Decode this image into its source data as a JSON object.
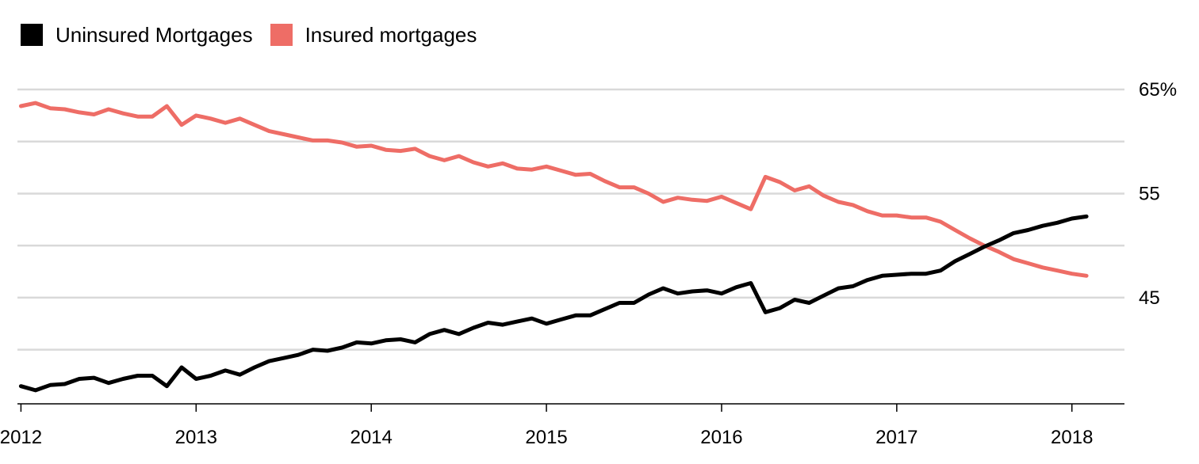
{
  "chart_data": {
    "type": "line",
    "title": "",
    "xlabel": "",
    "ylabel": "",
    "xlim": [
      2011.98,
      2018.3
    ],
    "ylim": [
      34.8,
      65
    ],
    "x_ticks": [
      2012,
      2013,
      2014,
      2015,
      2016,
      2017,
      2018
    ],
    "x_tick_labels": [
      "2012",
      "2013",
      "2014",
      "2015",
      "2016",
      "2017",
      "2018"
    ],
    "y_gridlines": [
      40,
      45,
      50,
      55,
      60,
      65
    ],
    "y_ticks": [
      45,
      55,
      65
    ],
    "y_tick_labels": [
      "45",
      "55",
      "65%"
    ],
    "legend_position": "top-left",
    "grid": true,
    "series": [
      {
        "name": "Uninsured Mortgages",
        "color": "#000000",
        "x": [
          2012.0,
          2012.083,
          2012.167,
          2012.25,
          2012.333,
          2012.417,
          2012.5,
          2012.583,
          2012.667,
          2012.75,
          2012.833,
          2012.917,
          2013.0,
          2013.083,
          2013.167,
          2013.25,
          2013.333,
          2013.417,
          2013.5,
          2013.583,
          2013.667,
          2013.75,
          2013.833,
          2013.917,
          2014.0,
          2014.083,
          2014.167,
          2014.25,
          2014.333,
          2014.417,
          2014.5,
          2014.583,
          2014.667,
          2014.75,
          2014.833,
          2014.917,
          2015.0,
          2015.083,
          2015.167,
          2015.25,
          2015.333,
          2015.417,
          2015.5,
          2015.583,
          2015.667,
          2015.75,
          2015.833,
          2015.917,
          2016.0,
          2016.083,
          2016.167,
          2016.25,
          2016.333,
          2016.417,
          2016.5,
          2016.583,
          2016.667,
          2016.75,
          2016.833,
          2016.917,
          2017.0,
          2017.083,
          2017.167,
          2017.25,
          2017.333,
          2017.417,
          2017.5,
          2017.583,
          2017.667,
          2017.75,
          2017.833,
          2017.917,
          2018.0,
          2018.083
        ],
        "values": [
          36.5,
          36.1,
          36.6,
          36.7,
          37.2,
          37.3,
          36.8,
          37.2,
          37.5,
          37.5,
          36.5,
          38.3,
          37.2,
          37.5,
          38.0,
          37.6,
          38.3,
          38.9,
          39.2,
          39.5,
          40.0,
          39.9,
          40.2,
          40.7,
          40.6,
          40.9,
          41.0,
          40.7,
          41.5,
          41.9,
          41.5,
          42.1,
          42.6,
          42.4,
          42.7,
          43.0,
          42.5,
          42.9,
          43.3,
          43.3,
          43.9,
          44.5,
          44.5,
          45.3,
          45.9,
          45.4,
          45.6,
          45.7,
          45.4,
          46.0,
          46.4,
          43.6,
          44.0,
          44.8,
          44.5,
          45.2,
          45.9,
          46.1,
          46.7,
          47.1,
          47.2,
          47.3,
          47.3,
          47.6,
          48.5,
          49.2,
          49.9,
          50.5,
          51.2,
          51.5,
          51.9,
          52.2,
          52.6,
          52.8
        ]
      },
      {
        "name": "Insured mortgages",
        "color": "#ee6d66",
        "x": [
          2012.0,
          2012.083,
          2012.167,
          2012.25,
          2012.333,
          2012.417,
          2012.5,
          2012.583,
          2012.667,
          2012.75,
          2012.833,
          2012.917,
          2013.0,
          2013.083,
          2013.167,
          2013.25,
          2013.333,
          2013.417,
          2013.5,
          2013.583,
          2013.667,
          2013.75,
          2013.833,
          2013.917,
          2014.0,
          2014.083,
          2014.167,
          2014.25,
          2014.333,
          2014.417,
          2014.5,
          2014.583,
          2014.667,
          2014.75,
          2014.833,
          2014.917,
          2015.0,
          2015.083,
          2015.167,
          2015.25,
          2015.333,
          2015.417,
          2015.5,
          2015.583,
          2015.667,
          2015.75,
          2015.833,
          2015.917,
          2016.0,
          2016.083,
          2016.167,
          2016.25,
          2016.333,
          2016.417,
          2016.5,
          2016.583,
          2016.667,
          2016.75,
          2016.833,
          2016.917,
          2017.0,
          2017.083,
          2017.167,
          2017.25,
          2017.333,
          2017.417,
          2017.5,
          2017.583,
          2017.667,
          2017.75,
          2017.833,
          2017.917,
          2018.0,
          2018.083
        ],
        "values": [
          63.4,
          63.7,
          63.2,
          63.1,
          62.8,
          62.6,
          63.1,
          62.7,
          62.4,
          62.4,
          63.4,
          61.6,
          62.5,
          62.2,
          61.8,
          62.2,
          61.6,
          61.0,
          60.7,
          60.4,
          60.1,
          60.1,
          59.9,
          59.5,
          59.6,
          59.2,
          59.1,
          59.3,
          58.6,
          58.2,
          58.6,
          58.0,
          57.6,
          57.9,
          57.4,
          57.3,
          57.6,
          57.2,
          56.8,
          56.9,
          56.2,
          55.6,
          55.6,
          55.0,
          54.2,
          54.6,
          54.4,
          54.3,
          54.7,
          54.1,
          53.5,
          56.6,
          56.1,
          55.3,
          55.7,
          54.8,
          54.2,
          53.9,
          53.3,
          52.9,
          52.9,
          52.7,
          52.7,
          52.3,
          51.5,
          50.7,
          50.0,
          49.4,
          48.7,
          48.3,
          47.9,
          47.6,
          47.3,
          47.1
        ]
      }
    ]
  }
}
